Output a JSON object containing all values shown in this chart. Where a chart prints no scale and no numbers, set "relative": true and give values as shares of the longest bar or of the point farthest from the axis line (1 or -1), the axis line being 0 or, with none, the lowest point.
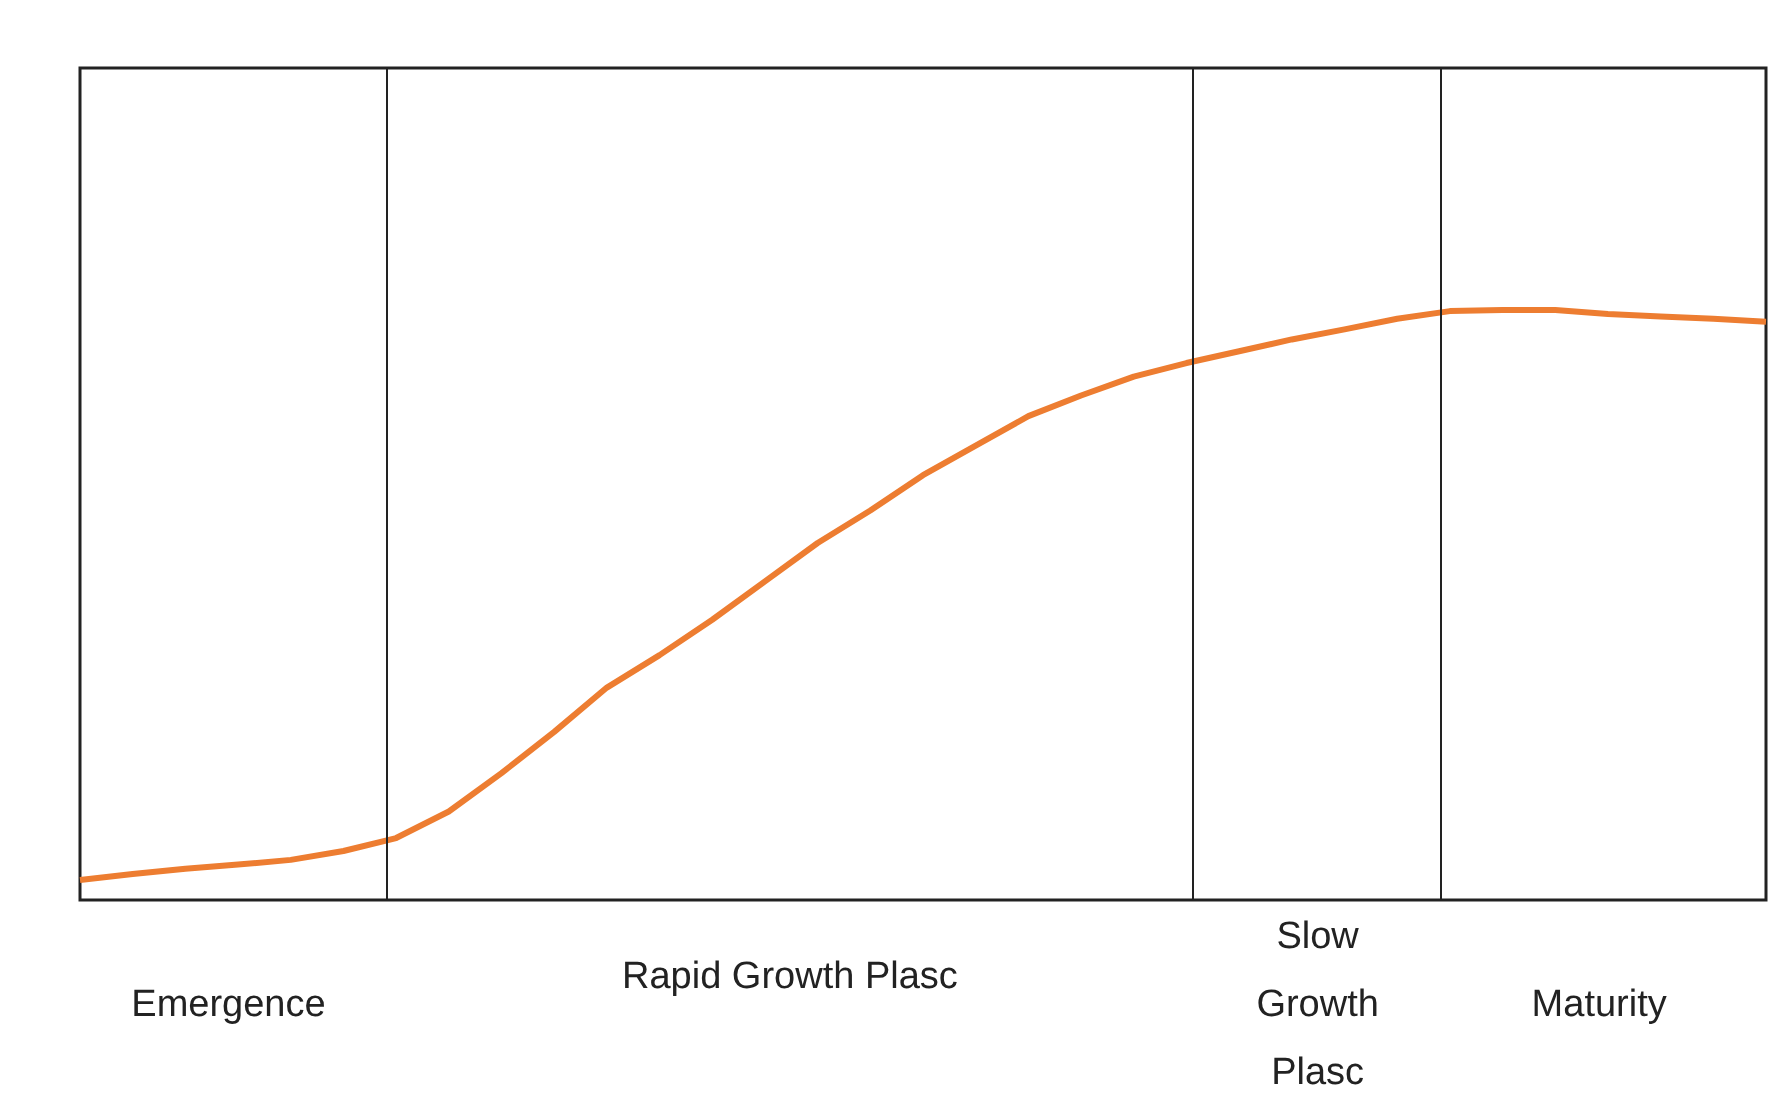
{
  "chart_data": {
    "type": "line",
    "relative": true,
    "categories": [
      null,
      null,
      null,
      null,
      null,
      null,
      null,
      null,
      null,
      null,
      null,
      null,
      null,
      null,
      null,
      null,
      null,
      null,
      null,
      null,
      null,
      null,
      null,
      null,
      null,
      null,
      null,
      null,
      null,
      null,
      null,
      null,
      null
    ],
    "series": [
      {
        "color": "#ed7d31",
        "values": [
          0.034,
          0.044,
          0.053,
          0.06,
          0.068,
          0.083,
          0.105,
          0.15,
          0.215,
          0.285,
          0.36,
          0.415,
          0.475,
          0.54,
          0.605,
          0.66,
          0.72,
          0.77,
          0.82,
          0.855,
          0.887,
          0.91,
          0.93,
          0.95,
          0.967,
          0.985,
          0.998,
          1,
          1,
          0.993,
          0.989,
          0.985,
          0.98
        ]
      }
    ],
    "annotations": [
      "Emergence",
      "Rapid Growth Plasc",
      "Slow Growth Plasc",
      "Maturity"
    ]
  }
}
